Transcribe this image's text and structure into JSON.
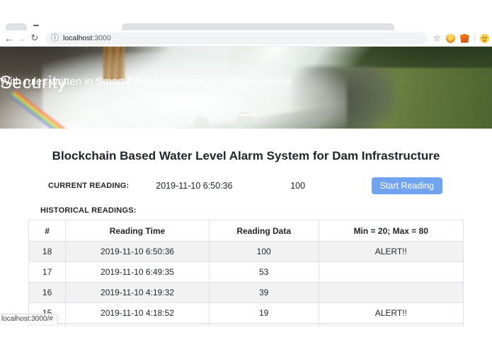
{
  "browser": {
    "tab_dash": "",
    "icons": {
      "back": "←",
      "forward": "→",
      "reload": "↻",
      "site_info": "ⓘ",
      "bookmark_star": "☆"
    },
    "url": {
      "host": "localhost",
      "port": ":3000"
    },
    "status_link": "localhost:3000/#"
  },
  "hero": {
    "title": "Security",
    "subtitle": "With rules written in Smart Contract, security is built-in. Period."
  },
  "page": {
    "title": "Blockchain Based Water Level Alarm System for Dam Infrastructure",
    "current_reading": {
      "label": "CURRENT READING:",
      "time": "2019-11-10 6:50:36",
      "value": "100",
      "button_label": "Start Reading"
    },
    "historical": {
      "label": "HISTORICAL READINGS:",
      "columns": [
        "#",
        "Reading Time",
        "Reading Data",
        "Min = 20; Max = 80"
      ],
      "rows": [
        {
          "num": "18",
          "time": "2019-11-10 6:50:36",
          "data": "100",
          "status": "ALERT!!"
        },
        {
          "num": "17",
          "time": "2019-11-10 6:49:35",
          "data": "53",
          "status": ""
        },
        {
          "num": "16",
          "time": "2019-11-10 4:19:32",
          "data": "39",
          "status": ""
        },
        {
          "num": "15",
          "time": "2019-11-10 4:18:52",
          "data": "19",
          "status": "ALERT!!"
        }
      ]
    }
  },
  "colors": {
    "accent_button": "#71a3f1",
    "table_stripe": "#f2f2f2",
    "addressbar_bg": "#f1f3f4",
    "tabbar_gray": "#dfe1e5"
  }
}
